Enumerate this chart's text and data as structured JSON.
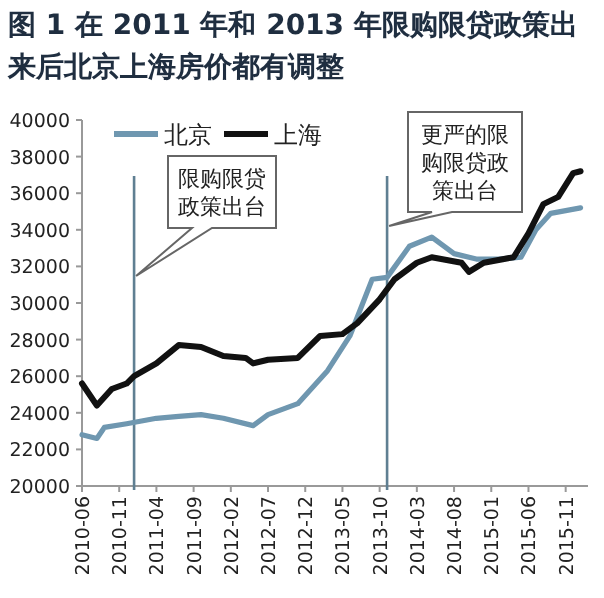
{
  "chart_data": {
    "type": "line",
    "title": "图 1 在 2011 年和 2013 年限购限贷政策出来后北京上海房价都有调整",
    "series": [
      {
        "name": "北京",
        "color": "#6f97b0",
        "x": [
          "2010-06",
          "2010-08",
          "2010-09",
          "2010-12",
          "2011-04",
          "2011-07",
          "2011-10",
          "2012-01",
          "2012-05",
          "2012-07",
          "2012-09",
          "2012-11",
          "2013-03",
          "2013-06",
          "2013-09",
          "2013-11",
          "2014-02",
          "2014-05",
          "2014-08",
          "2014-11",
          "2015-02",
          "2015-05",
          "2015-07",
          "2015-09",
          "2016-01"
        ],
        "values": [
          22800,
          22600,
          23200,
          23400,
          23700,
          23800,
          23900,
          23700,
          23300,
          23900,
          24200,
          24500,
          26300,
          28200,
          31300,
          31400,
          33100,
          33600,
          32700,
          32400,
          32400,
          32500,
          34000,
          34900,
          35200
        ]
      },
      {
        "name": "上海",
        "color": "#111111",
        "x": [
          "2010-06",
          "2010-08",
          "2010-10",
          "2010-12",
          "2011-01",
          "2011-04",
          "2011-07",
          "2011-10",
          "2012-01",
          "2012-04",
          "2012-05",
          "2012-07",
          "2012-11",
          "2013-02",
          "2013-05",
          "2013-07",
          "2013-10",
          "2013-12",
          "2014-03",
          "2014-05",
          "2014-09",
          "2014-10",
          "2014-12",
          "2015-04",
          "2015-06",
          "2015-08",
          "2015-10",
          "2015-12",
          "2016-01"
        ],
        "values": [
          25600,
          24400,
          25300,
          25600,
          26000,
          26700,
          27700,
          27600,
          27100,
          27000,
          26700,
          26900,
          27000,
          28200,
          28300,
          28900,
          30200,
          31300,
          32200,
          32500,
          32200,
          31700,
          32200,
          32500,
          33800,
          35400,
          35800,
          37100,
          37200
        ]
      }
    ],
    "xlim": [
      "2010-06",
      "2016-02"
    ],
    "xticks": [
      {
        "value": "2010-06",
        "label": "2010-06"
      },
      {
        "value": "2010-11",
        "label": "2010-11"
      },
      {
        "value": "2011-04",
        "label": "2011-04"
      },
      {
        "value": "2011-09",
        "label": "2011-09"
      },
      {
        "value": "2012-02",
        "label": "2012-02"
      },
      {
        "value": "2012-07",
        "label": "2012-07"
      },
      {
        "value": "2012-12",
        "label": "2012-12"
      },
      {
        "value": "2013-05",
        "label": "2013-05"
      },
      {
        "value": "2013-10",
        "label": "2013-10"
      },
      {
        "value": "2014-03",
        "label": "2014-03"
      },
      {
        "value": "2014-08",
        "label": "2014-08"
      },
      {
        "value": "2015-01",
        "label": "2015-01"
      },
      {
        "value": "2015-06",
        "label": "2015-06"
      },
      {
        "value": "2015-11",
        "label": "2015-11"
      }
    ],
    "ylim": [
      20000,
      40000
    ],
    "yticks": [
      20000,
      22000,
      24000,
      26000,
      28000,
      30000,
      32000,
      34000,
      36000,
      38000,
      40000
    ],
    "ref_lines": [
      {
        "axis": "x",
        "value": "2011-01",
        "label": "限购限贷政策出台",
        "color": "#5f7f92"
      },
      {
        "axis": "x",
        "value": "2013-11",
        "label": "更严的限购限贷政策出台",
        "color": "#5f7f92"
      }
    ],
    "legend": "top",
    "grid": false,
    "marker": "none",
    "line_style": "solid"
  }
}
